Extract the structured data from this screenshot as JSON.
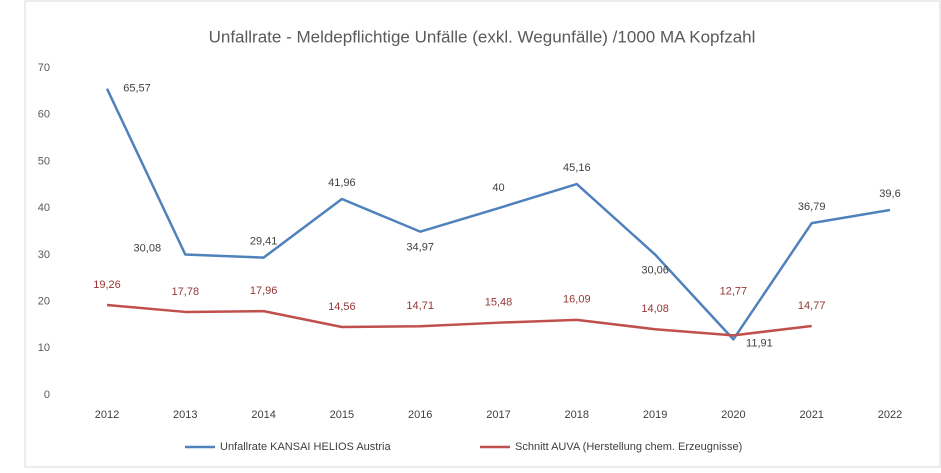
{
  "chart_data": {
    "type": "line",
    "title": "Unfallrate - Meldepflichtige Unfälle (exkl. Wegunfälle) /1000 MA Kopfzahl",
    "categories": [
      "2012",
      "2013",
      "2014",
      "2015",
      "2016",
      "2017",
      "2018",
      "2019",
      "2020",
      "2021",
      "2022"
    ],
    "series": [
      {
        "name": "Unfallrate KANSAI HELIOS Austria",
        "color": "#4f81bd",
        "values": [
          65.57,
          30.08,
          29.41,
          41.96,
          34.97,
          40,
          45.16,
          30.06,
          11.91,
          36.79,
          39.6
        ],
        "value_labels": [
          "65,57",
          "30,08",
          "29,41",
          "41,96",
          "34,97",
          "40",
          "45,16",
          "30,06",
          "11,91",
          "36,79",
          "39,6"
        ]
      },
      {
        "name": "Schnitt AUVA (Herstellung chem. Erzeugnisse)",
        "color": "#c0504d",
        "values": [
          19.26,
          17.78,
          17.96,
          14.56,
          14.71,
          15.48,
          16.09,
          14.08,
          12.77,
          14.77,
          null
        ],
        "value_labels": [
          "19,26",
          "17,78",
          "17,96",
          "14,56",
          "14,71",
          "15,48",
          "16,09",
          "14,08",
          "12,77",
          "14,77",
          null
        ]
      }
    ],
    "ylim": [
      0,
      70
    ],
    "yticks": [
      0,
      10,
      20,
      30,
      40,
      50,
      60,
      70
    ],
    "grid": false,
    "legend": "bottom"
  }
}
